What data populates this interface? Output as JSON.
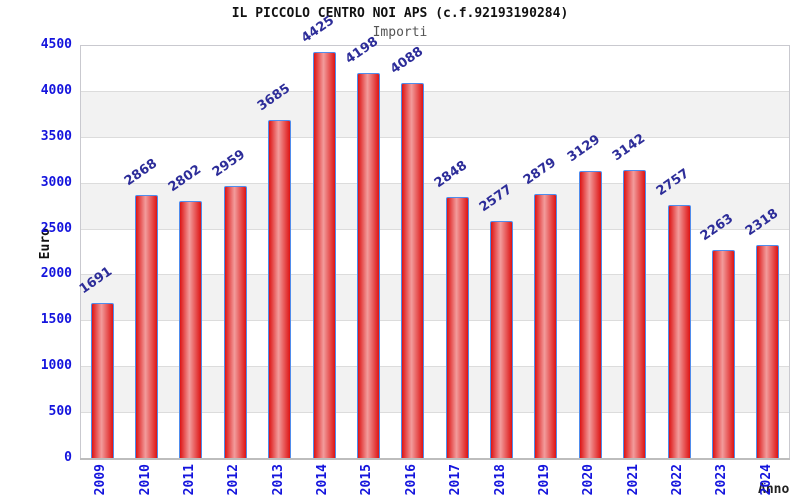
{
  "chart_data": {
    "type": "bar",
    "title": "IL PICCOLO CENTRO NOI APS (c.f.92193190284)",
    "subtitle": "Importi",
    "xlabel": "Anno",
    "ylabel": "Euro",
    "categories": [
      "2009",
      "2010",
      "2011",
      "2012",
      "2013",
      "2014",
      "2015",
      "2016",
      "2017",
      "2018",
      "2019",
      "2020",
      "2021",
      "2022",
      "2023",
      "2024"
    ],
    "values": [
      1691,
      2868,
      2802,
      2959,
      3685,
      4425,
      4198,
      4088,
      2848,
      2577,
      2879,
      3129,
      3142,
      2757,
      2263,
      2318
    ],
    "ylim": [
      0,
      4500
    ],
    "ytick_step": 500,
    "grid": "alternating-horizontal-bands",
    "legend": "none",
    "colors": {
      "bar_edge_fill": "#dd1414",
      "bar_center_fill": "#f29c9c",
      "bar_border": "#4f8cec",
      "value_label": "#2d2d99",
      "tick_label": "#1414dd",
      "band": "#f2f2f2",
      "gridline": "#dcdcdc",
      "plot_border": "#c9c9cf",
      "axis_line": "#bdbdbd",
      "title_color": "#111111",
      "subtitle_color": "#555555"
    }
  }
}
